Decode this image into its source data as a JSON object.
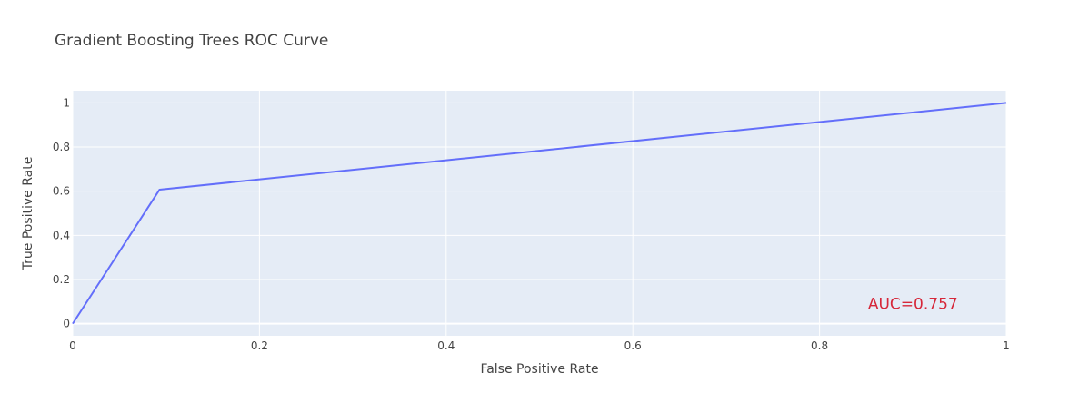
{
  "chart_data": {
    "type": "line",
    "title": "Gradient Boosting Trees ROC Curve",
    "xlabel": "False Positive Rate",
    "ylabel": "True Positive Rate",
    "xlim": [
      0,
      1
    ],
    "ylim": [
      -0.055,
      1.055
    ],
    "x_ticks": [
      0,
      0.2,
      0.4,
      0.6,
      0.8,
      1
    ],
    "x_tick_labels": [
      "0",
      "0.2",
      "0.4",
      "0.6",
      "0.8",
      "1"
    ],
    "y_ticks": [
      0,
      0.2,
      0.4,
      0.6,
      0.8,
      1
    ],
    "y_tick_labels": [
      "0",
      "0.2",
      "0.4",
      "0.6",
      "0.8",
      "1"
    ],
    "grid": true,
    "series": [
      {
        "x": [
          0,
          0.093,
          1
        ],
        "y": [
          0,
          0.607,
          1
        ],
        "color": "#636efa"
      }
    ],
    "annotation": {
      "text": "AUC=0.757",
      "x": 0.9,
      "y": 0.09,
      "color": "#d62739"
    },
    "colors": {
      "plot_background": "#e5ecf6",
      "grid": "#ffffff",
      "text": "#444444"
    }
  }
}
